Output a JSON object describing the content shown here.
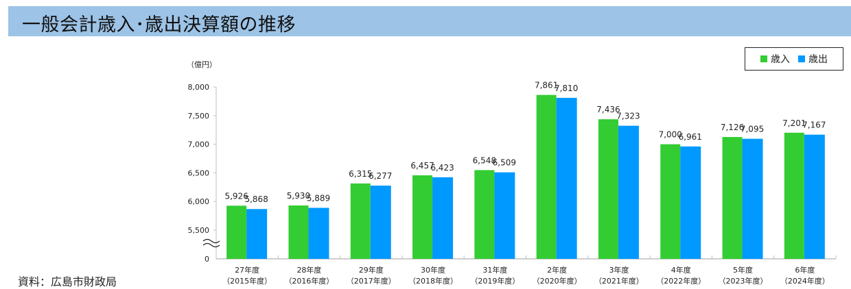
{
  "title": "一般会計歳入･歳出決算額の推移",
  "unit_label": "（億円）",
  "source": "資料：広島市財政局",
  "legend": [
    {
      "label": "歳入",
      "color": "#33cc33"
    },
    {
      "label": "歳出",
      "color": "#0099ff"
    }
  ],
  "chart_data": {
    "type": "bar",
    "title": "一般会計歳入･歳出決算額の推移",
    "xlabel": "",
    "ylabel": "億円",
    "categories": [
      "27年度（2015年度）",
      "28年度（2016年度）",
      "29年度（2017年度）",
      "30年度（2018年度）",
      "31年度（2019年度）",
      "2年度（2020年度）",
      "3年度（2021年度）",
      "4年度（2022年度）",
      "5年度（2023年度）",
      "6年度（2024年度）"
    ],
    "category_lines": [
      [
        "27年度",
        "（2015年度）"
      ],
      [
        "28年度",
        "（2016年度）"
      ],
      [
        "29年度",
        "（2017年度）"
      ],
      [
        "30年度",
        "（2018年度）"
      ],
      [
        "31年度",
        "（2019年度）"
      ],
      [
        "2年度",
        "（2020年度）"
      ],
      [
        "3年度",
        "（2021年度）"
      ],
      [
        "4年度",
        "（2022年度）"
      ],
      [
        "5年度",
        "（2023年度）"
      ],
      [
        "6年度",
        "（2024年度）"
      ]
    ],
    "series": [
      {
        "name": "歳入",
        "color": "#33cc33",
        "values": [
          5926,
          5930,
          6315,
          6457,
          6548,
          7861,
          7436,
          7000,
          7126,
          7201
        ]
      },
      {
        "name": "歳出",
        "color": "#0099ff",
        "values": [
          5868,
          5889,
          6277,
          6423,
          6509,
          7810,
          7323,
          6961,
          7095,
          7167
        ]
      }
    ],
    "yticks": [
      "0",
      "5,500",
      "6,000",
      "6,500",
      "7,000",
      "7,500",
      "8,000"
    ],
    "ytick_values": [
      0,
      5500,
      6000,
      6500,
      7000,
      7500,
      8000
    ],
    "ylim": [
      0,
      8000
    ],
    "axis_break": "between 0 and 5,500",
    "legend_position": "top-right",
    "grid": false
  }
}
